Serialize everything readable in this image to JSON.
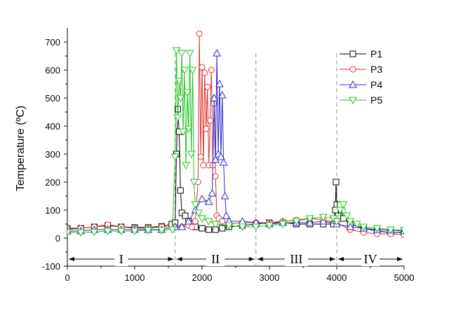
{
  "chart_data": {
    "type": "line",
    "title": "",
    "xlabel": "",
    "ylabel": "Temperature (ºC)",
    "xlim": [
      0,
      5000
    ],
    "ylim": [
      -100,
      750
    ],
    "x_ticks": [
      0,
      1000,
      2000,
      3000,
      4000,
      5000
    ],
    "y_ticks": [
      -100,
      0,
      100,
      200,
      300,
      400,
      500,
      600,
      700
    ],
    "grid": false,
    "legend_position": "top-right",
    "region_dividers": [
      1600,
      2800,
      4000
    ],
    "regions": [
      {
        "label": "I",
        "x_start": 0,
        "x_end": 1600
      },
      {
        "label": "II",
        "x_start": 1600,
        "x_end": 2800
      },
      {
        "label": "III",
        "x_start": 2800,
        "x_end": 4000
      },
      {
        "label": "IV",
        "x_start": 4000,
        "x_end": 5000
      }
    ],
    "series": [
      {
        "name": "P1",
        "color": "#000000",
        "marker": "square",
        "x": [
          0,
          200,
          400,
          600,
          800,
          1000,
          1200,
          1400,
          1550,
          1600,
          1620,
          1640,
          1660,
          1680,
          1700,
          1750,
          1800,
          1850,
          1900,
          2000,
          2100,
          2200,
          2300,
          2400,
          2600,
          2800,
          3000,
          3200,
          3400,
          3600,
          3800,
          3950,
          3980,
          3990,
          4000,
          4020,
          4050,
          4100,
          4200,
          4400,
          4600,
          4800,
          5000
        ],
        "y": [
          35,
          35,
          40,
          45,
          40,
          38,
          38,
          42,
          50,
          55,
          300,
          460,
          380,
          170,
          90,
          80,
          60,
          50,
          40,
          35,
          30,
          30,
          35,
          40,
          45,
          50,
          55,
          55,
          50,
          50,
          50,
          50,
          100,
          200,
          120,
          80,
          120,
          70,
          50,
          35,
          25,
          20,
          20
        ]
      },
      {
        "name": "P3",
        "color": "#e03030",
        "marker": "circle",
        "x": [
          0,
          200,
          400,
          600,
          800,
          1000,
          1200,
          1400,
          1600,
          1700,
          1800,
          1850,
          1900,
          1940,
          1960,
          1980,
          2000,
          2020,
          2040,
          2060,
          2080,
          2100,
          2120,
          2140,
          2160,
          2180,
          2200,
          2220,
          2250,
          2300,
          2400,
          2600,
          2800,
          3000,
          3200,
          3400,
          3600,
          3800,
          4000,
          4200,
          4400,
          4600,
          4800,
          5000
        ],
        "y": [
          30,
          35,
          40,
          48,
          40,
          35,
          35,
          40,
          40,
          40,
          45,
          40,
          60,
          200,
          730,
          290,
          610,
          260,
          590,
          390,
          540,
          260,
          420,
          600,
          260,
          480,
          220,
          80,
          70,
          60,
          50,
          55,
          55,
          55,
          60,
          65,
          70,
          65,
          55,
          30,
          20,
          15,
          15,
          12
        ]
      },
      {
        "name": "P4",
        "color": "#2a2ad0",
        "marker": "triangle-up",
        "x": [
          0,
          200,
          400,
          600,
          800,
          1000,
          1200,
          1400,
          1600,
          1700,
          1800,
          1900,
          2000,
          2100,
          2150,
          2180,
          2200,
          2220,
          2240,
          2260,
          2280,
          2300,
          2320,
          2340,
          2360,
          2400,
          2600,
          2800,
          3000,
          3200,
          3400,
          3600,
          3800,
          4000,
          4200,
          4400,
          4600,
          4800,
          5000
        ],
        "y": [
          25,
          25,
          30,
          30,
          30,
          30,
          30,
          30,
          40,
          40,
          60,
          100,
          140,
          130,
          160,
          500,
          280,
          660,
          300,
          550,
          290,
          510,
          270,
          150,
          80,
          60,
          60,
          55,
          50,
          55,
          55,
          55,
          60,
          50,
          40,
          35,
          30,
          28,
          25
        ]
      },
      {
        "name": "P5",
        "color": "#22c422",
        "marker": "triangle-down",
        "x": [
          0,
          200,
          400,
          600,
          800,
          1000,
          1200,
          1400,
          1560,
          1600,
          1620,
          1640,
          1660,
          1680,
          1700,
          1720,
          1740,
          1760,
          1780,
          1800,
          1820,
          1840,
          1860,
          1880,
          1900,
          1950,
          2000,
          2100,
          2200,
          2400,
          2600,
          2800,
          3000,
          3200,
          3400,
          3600,
          3800,
          3950,
          4000,
          4050,
          4100,
          4150,
          4200,
          4300,
          4400,
          4600,
          4800,
          5000
        ],
        "y": [
          20,
          20,
          22,
          25,
          25,
          25,
          28,
          28,
          30,
          290,
          670,
          430,
          560,
          500,
          660,
          380,
          600,
          260,
          520,
          390,
          660,
          300,
          600,
          200,
          120,
          90,
          70,
          60,
          50,
          45,
          40,
          40,
          45,
          50,
          60,
          70,
          75,
          70,
          60,
          100,
          120,
          80,
          60,
          50,
          40,
          35,
          30,
          28
        ]
      }
    ]
  }
}
